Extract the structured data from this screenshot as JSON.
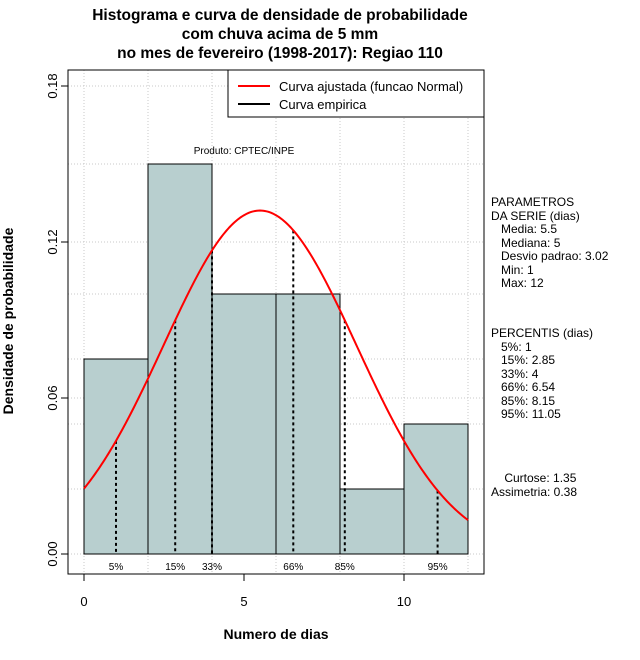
{
  "chart_data": {
    "type": "bar",
    "title_lines": [
      "Histograma e curva de densidade de probabilidade",
      "com chuva acima de 5 mm",
      "no mes de fevereiro (1998-2017): Regiao 110"
    ],
    "xlabel": "Numero de dias",
    "ylabel": "Densidade de probabilidade",
    "xlim": [
      -0.5,
      12.5
    ],
    "ylim": [
      0,
      0.186
    ],
    "x_ticks": [
      0,
      5,
      10
    ],
    "y_ticks": [
      0.0,
      0.06,
      0.12,
      0.18
    ],
    "y_tick_labels": [
      "0.00",
      "0.06",
      "0.12",
      "0.18"
    ],
    "grid": true,
    "bins": [
      {
        "x0": 0,
        "x1": 2,
        "density": 0.075
      },
      {
        "x0": 2,
        "x1": 4,
        "density": 0.15
      },
      {
        "x0": 4,
        "x1": 6,
        "density": 0.1
      },
      {
        "x0": 6,
        "x1": 8,
        "density": 0.1
      },
      {
        "x0": 8,
        "x1": 10,
        "density": 0.025
      },
      {
        "x0": 10,
        "x1": 12,
        "density": 0.05
      }
    ],
    "fitted_curve": {
      "name": "Curva ajustada (funcao Normal)",
      "distribution": "normal",
      "mean": 5.5,
      "sd": 3.02,
      "color": "#ff0000"
    },
    "empirical_curve": {
      "name": "Curva empirica",
      "color": "#000000"
    },
    "legend_position": "top-right",
    "percentile_markers": [
      {
        "label": "5%",
        "x": 1
      },
      {
        "label": "15%",
        "x": 2.85
      },
      {
        "label": "33%",
        "x": 4
      },
      {
        "label": "66%",
        "x": 6.54
      },
      {
        "label": "85%",
        "x": 8.15
      },
      {
        "label": "95%",
        "x": 11.05
      }
    ],
    "annotation": "Produto: CPTEC/INPE",
    "bar_color": "#b8cfcf"
  },
  "side_panel": {
    "parametros": "PARAMETROS\nDA SERIE (dias)\n   Media: 5.5\n   Mediana: 5\n   Desvio padrao: 3.02\n   Min: 1\n   Max: 12",
    "percentis": "PERCENTIS (dias)\n   5%: 1\n   15%: 2.85\n   33%: 4\n   66%: 6.54\n   85%: 8.15\n   95%: 11.05",
    "momentos": "    Curtose: 1.35\nAssimetria: 0.38"
  }
}
